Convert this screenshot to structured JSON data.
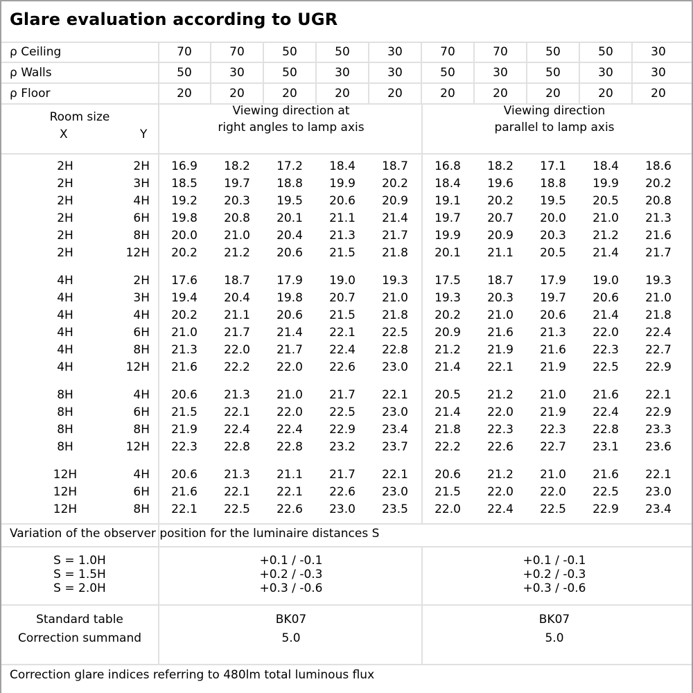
{
  "title": "Glare evaluation according to UGR",
  "reflectances": [
    {
      "label": "ρ Ceiling",
      "values": [
        "70",
        "70",
        "50",
        "50",
        "30",
        "70",
        "70",
        "50",
        "50",
        "30"
      ]
    },
    {
      "label": "ρ Walls",
      "values": [
        "50",
        "30",
        "50",
        "30",
        "30",
        "50",
        "30",
        "50",
        "30",
        "30"
      ]
    },
    {
      "label": "ρ Floor",
      "values": [
        "20",
        "20",
        "20",
        "20",
        "20",
        "20",
        "20",
        "20",
        "20",
        "20"
      ]
    }
  ],
  "header": {
    "room_size": "Room size",
    "x": "X",
    "y": "Y",
    "dir1": [
      "Viewing direction at",
      "right angles to lamp axis"
    ],
    "dir2": [
      "Viewing direction",
      "parallel to lamp axis"
    ]
  },
  "groups": [
    [
      {
        "x": "2H",
        "y": "2H",
        "values": [
          "16.9",
          "18.2",
          "17.2",
          "18.4",
          "18.7",
          "16.8",
          "18.2",
          "17.1",
          "18.4",
          "18.6"
        ]
      },
      {
        "x": "2H",
        "y": "3H",
        "values": [
          "18.5",
          "19.7",
          "18.8",
          "19.9",
          "20.2",
          "18.4",
          "19.6",
          "18.8",
          "19.9",
          "20.2"
        ]
      },
      {
        "x": "2H",
        "y": "4H",
        "values": [
          "19.2",
          "20.3",
          "19.5",
          "20.6",
          "20.9",
          "19.1",
          "20.2",
          "19.5",
          "20.5",
          "20.8"
        ]
      },
      {
        "x": "2H",
        "y": "6H",
        "values": [
          "19.8",
          "20.8",
          "20.1",
          "21.1",
          "21.4",
          "19.7",
          "20.7",
          "20.0",
          "21.0",
          "21.3"
        ]
      },
      {
        "x": "2H",
        "y": "8H",
        "values": [
          "20.0",
          "21.0",
          "20.4",
          "21.3",
          "21.7",
          "19.9",
          "20.9",
          "20.3",
          "21.2",
          "21.6"
        ]
      },
      {
        "x": "2H",
        "y": "12H",
        "values": [
          "20.2",
          "21.2",
          "20.6",
          "21.5",
          "21.8",
          "20.1",
          "21.1",
          "20.5",
          "21.4",
          "21.7"
        ]
      }
    ],
    [
      {
        "x": "4H",
        "y": "2H",
        "values": [
          "17.6",
          "18.7",
          "17.9",
          "19.0",
          "19.3",
          "17.5",
          "18.7",
          "17.9",
          "19.0",
          "19.3"
        ]
      },
      {
        "x": "4H",
        "y": "3H",
        "values": [
          "19.4",
          "20.4",
          "19.8",
          "20.7",
          "21.0",
          "19.3",
          "20.3",
          "19.7",
          "20.6",
          "21.0"
        ]
      },
      {
        "x": "4H",
        "y": "4H",
        "values": [
          "20.2",
          "21.1",
          "20.6",
          "21.5",
          "21.8",
          "20.2",
          "21.0",
          "20.6",
          "21.4",
          "21.8"
        ]
      },
      {
        "x": "4H",
        "y": "6H",
        "values": [
          "21.0",
          "21.7",
          "21.4",
          "22.1",
          "22.5",
          "20.9",
          "21.6",
          "21.3",
          "22.0",
          "22.4"
        ]
      },
      {
        "x": "4H",
        "y": "8H",
        "values": [
          "21.3",
          "22.0",
          "21.7",
          "22.4",
          "22.8",
          "21.2",
          "21.9",
          "21.6",
          "22.3",
          "22.7"
        ]
      },
      {
        "x": "4H",
        "y": "12H",
        "values": [
          "21.6",
          "22.2",
          "22.0",
          "22.6",
          "23.0",
          "21.4",
          "22.1",
          "21.9",
          "22.5",
          "22.9"
        ]
      }
    ],
    [
      {
        "x": "8H",
        "y": "4H",
        "values": [
          "20.6",
          "21.3",
          "21.0",
          "21.7",
          "22.1",
          "20.5",
          "21.2",
          "21.0",
          "21.6",
          "22.1"
        ]
      },
      {
        "x": "8H",
        "y": "6H",
        "values": [
          "21.5",
          "22.1",
          "22.0",
          "22.5",
          "23.0",
          "21.4",
          "22.0",
          "21.9",
          "22.4",
          "22.9"
        ]
      },
      {
        "x": "8H",
        "y": "8H",
        "values": [
          "21.9",
          "22.4",
          "22.4",
          "22.9",
          "23.4",
          "21.8",
          "22.3",
          "22.3",
          "22.8",
          "23.3"
        ]
      },
      {
        "x": "8H",
        "y": "12H",
        "values": [
          "22.3",
          "22.8",
          "22.8",
          "23.2",
          "23.7",
          "22.2",
          "22.6",
          "22.7",
          "23.1",
          "23.6"
        ]
      }
    ],
    [
      {
        "x": "12H",
        "y": "4H",
        "values": [
          "20.6",
          "21.3",
          "21.1",
          "21.7",
          "22.1",
          "20.6",
          "21.2",
          "21.0",
          "21.6",
          "22.1"
        ]
      },
      {
        "x": "12H",
        "y": "6H",
        "values": [
          "21.6",
          "22.1",
          "22.1",
          "22.6",
          "23.0",
          "21.5",
          "22.0",
          "22.0",
          "22.5",
          "23.0"
        ]
      },
      {
        "x": "12H",
        "y": "8H",
        "values": [
          "22.1",
          "22.5",
          "22.6",
          "23.0",
          "23.5",
          "22.0",
          "22.4",
          "22.5",
          "22.9",
          "23.4"
        ]
      }
    ]
  ],
  "variation": {
    "caption": "Variation of the observer position for the luminaire distances S",
    "labels": [
      "S = 1.0H",
      "S = 1.5H",
      "S = 2.0H"
    ],
    "dir1": [
      "+0.1 / -0.1",
      "+0.2 / -0.3",
      "+0.3 / -0.6"
    ],
    "dir2": [
      "+0.1 / -0.1",
      "+0.2 / -0.3",
      "+0.3 / -0.6"
    ]
  },
  "standard": {
    "labels": [
      "Standard table",
      "Correction summand"
    ],
    "dir1": [
      "BK07",
      "5.0"
    ],
    "dir2": [
      "BK07",
      "5.0"
    ]
  },
  "footer": "Correction glare indices referring to 480lm total luminous flux"
}
